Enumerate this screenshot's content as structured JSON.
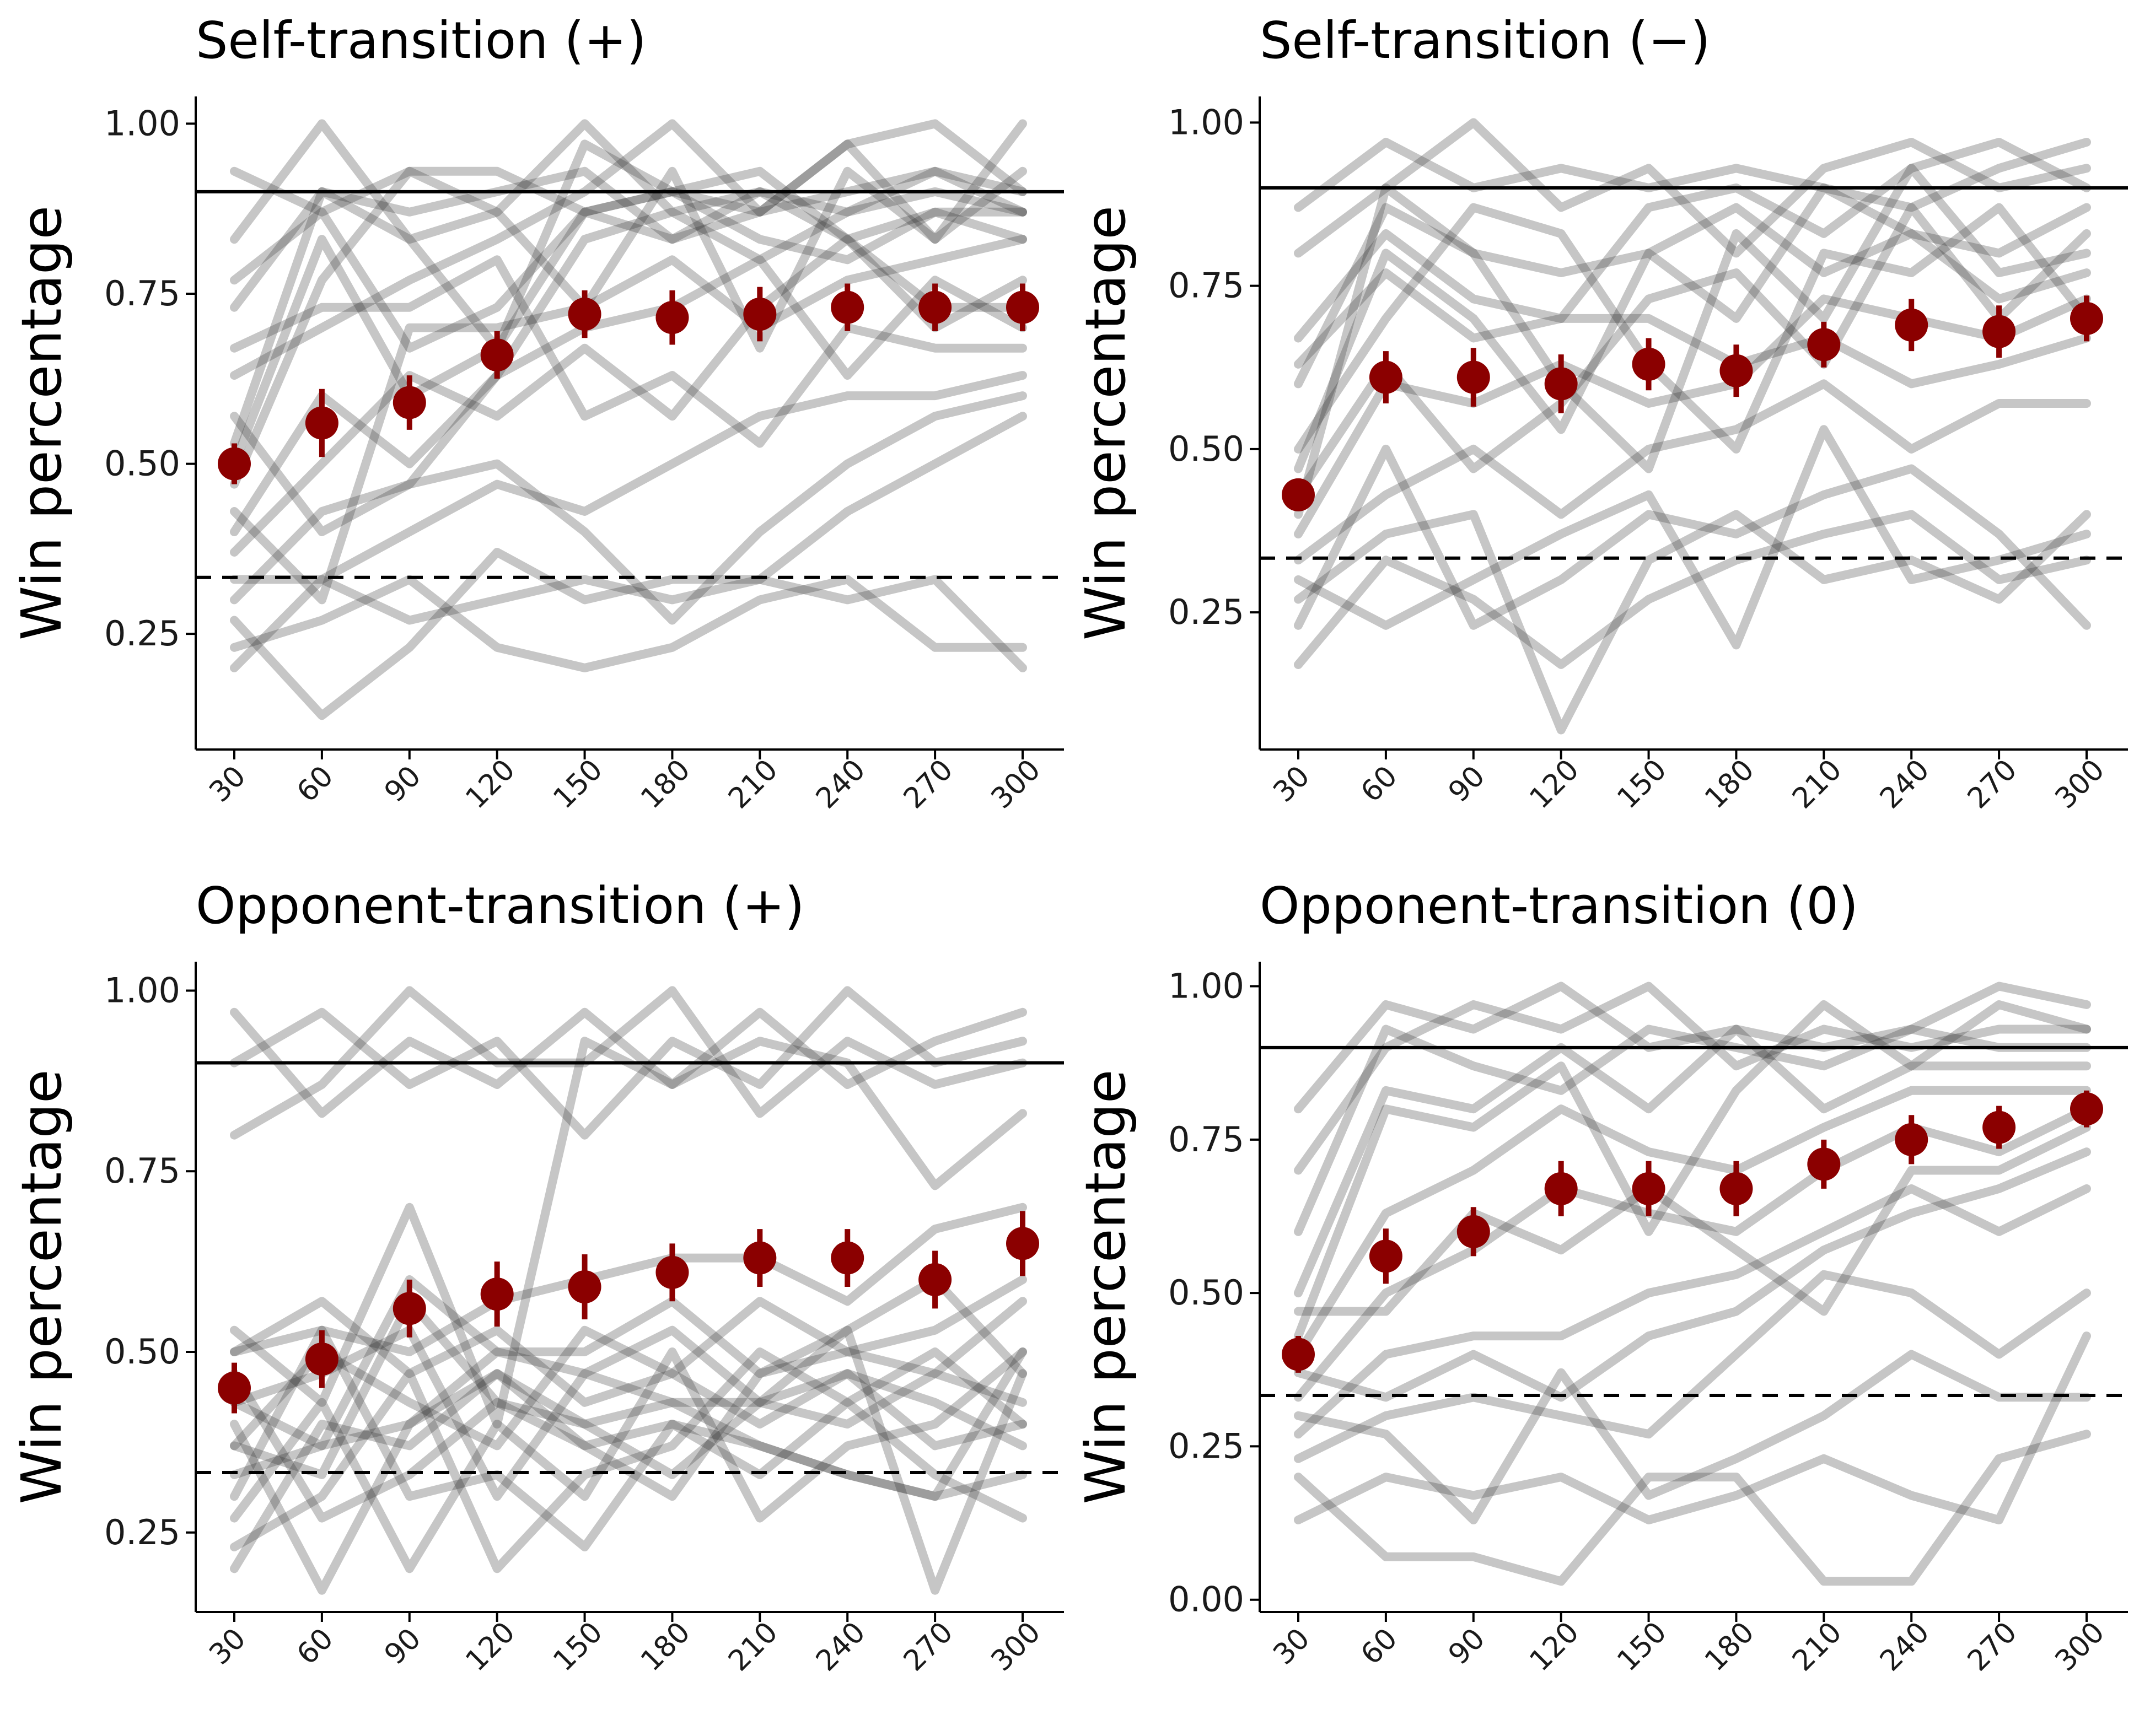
{
  "chart_data": [
    {
      "type": "line",
      "title": "Self-transition (+)",
      "ylabel": "Win percentage",
      "xlabel": "",
      "x": [
        30,
        60,
        90,
        120,
        150,
        180,
        210,
        240,
        270,
        300
      ],
      "ylim": [
        0.08,
        1.04
      ],
      "yticks": [
        0.25,
        0.5,
        0.75,
        1.0
      ],
      "ytick_labels": [
        "0.25",
        "0.50",
        "0.75",
        "1.00"
      ],
      "reference_lines": [
        {
          "y": 0.9,
          "style": "solid"
        },
        {
          "y": 0.333,
          "style": "dashed"
        }
      ],
      "mean": {
        "values": [
          0.5,
          0.56,
          0.59,
          0.66,
          0.72,
          0.715,
          0.72,
          0.73,
          0.73,
          0.73
        ],
        "errors": [
          0.03,
          0.05,
          0.04,
          0.035,
          0.035,
          0.04,
          0.04,
          0.035,
          0.035,
          0.035
        ]
      },
      "series": [
        {
          "values": [
            0.93,
            0.87,
            0.93,
            0.93,
            0.87,
            0.9,
            0.87,
            0.9,
            0.93,
            0.9
          ]
        },
        {
          "values": [
            0.83,
            1.0,
            0.83,
            0.87,
            1.0,
            0.87,
            0.9,
            0.83,
            0.87,
            0.87
          ]
        },
        {
          "values": [
            0.73,
            0.9,
            0.87,
            0.9,
            0.93,
            0.83,
            0.87,
            0.97,
            0.83,
            0.93
          ]
        },
        {
          "values": [
            0.63,
            0.7,
            0.77,
            0.83,
            0.9,
            1.0,
            0.87,
            0.97,
            1.0,
            0.9
          ]
        },
        {
          "values": [
            0.57,
            0.4,
            0.47,
            0.63,
            0.83,
            0.87,
            0.8,
            0.87,
            0.9,
            0.87
          ]
        },
        {
          "values": [
            0.5,
            0.83,
            0.6,
            0.67,
            0.87,
            0.9,
            0.83,
            0.8,
            0.87,
            0.83
          ]
        },
        {
          "values": [
            0.43,
            0.3,
            0.7,
            0.7,
            0.73,
            0.8,
            0.7,
            0.77,
            0.8,
            0.83
          ]
        },
        {
          "values": [
            0.4,
            0.6,
            0.5,
            0.63,
            0.7,
            0.73,
            0.8,
            0.63,
            0.77,
            0.7
          ]
        },
        {
          "values": [
            0.37,
            0.5,
            0.63,
            0.57,
            0.67,
            0.57,
            0.73,
            0.83,
            0.7,
            0.77
          ]
        },
        {
          "values": [
            0.33,
            0.33,
            0.4,
            0.47,
            0.43,
            0.5,
            0.57,
            0.6,
            0.6,
            0.63
          ]
        },
        {
          "values": [
            0.3,
            0.43,
            0.47,
            0.5,
            0.4,
            0.27,
            0.4,
            0.5,
            0.57,
            0.6
          ]
        },
        {
          "values": [
            0.27,
            0.13,
            0.23,
            0.37,
            0.3,
            0.33,
            0.33,
            0.43,
            0.5,
            0.57
          ]
        },
        {
          "values": [
            0.23,
            0.27,
            0.33,
            0.23,
            0.2,
            0.23,
            0.3,
            0.33,
            0.23,
            0.23
          ]
        },
        {
          "values": [
            0.2,
            0.33,
            0.27,
            0.3,
            0.33,
            0.3,
            0.33,
            0.3,
            0.33,
            0.2
          ]
        },
        {
          "values": [
            0.47,
            0.77,
            0.93,
            0.87,
            0.73,
            0.93,
            0.67,
            0.93,
            0.83,
            1.0
          ]
        },
        {
          "values": [
            0.53,
            0.9,
            0.83,
            0.67,
            0.97,
            0.9,
            0.93,
            0.83,
            0.73,
            0.73
          ]
        },
        {
          "values": [
            0.67,
            0.73,
            0.73,
            0.8,
            0.57,
            0.63,
            0.53,
            0.7,
            0.67,
            0.67
          ]
        },
        {
          "values": [
            0.77,
            0.87,
            0.67,
            0.73,
            0.87,
            0.83,
            0.9,
            0.87,
            0.93,
            0.87
          ]
        }
      ]
    },
    {
      "type": "line",
      "title": "Self-transition (−)",
      "ylabel": "Win percentage",
      "xlabel": "",
      "x": [
        30,
        60,
        90,
        120,
        150,
        180,
        210,
        240,
        270,
        300
      ],
      "ylim": [
        0.04,
        1.04
      ],
      "yticks": [
        0.25,
        0.5,
        0.75,
        1.0
      ],
      "ytick_labels": [
        "0.25",
        "0.50",
        "0.75",
        "1.00"
      ],
      "reference_lines": [
        {
          "y": 0.9,
          "style": "solid"
        },
        {
          "y": 0.333,
          "style": "dashed"
        }
      ],
      "mean": {
        "values": [
          0.43,
          0.61,
          0.61,
          0.6,
          0.63,
          0.62,
          0.66,
          0.69,
          0.68,
          0.7
        ],
        "errors": [
          0.025,
          0.04,
          0.045,
          0.045,
          0.04,
          0.04,
          0.035,
          0.04,
          0.04,
          0.035
        ]
      },
      "series": [
        {
          "values": [
            0.87,
            0.97,
            0.9,
            0.93,
            0.9,
            0.93,
            0.9,
            0.87,
            0.93,
            0.97
          ]
        },
        {
          "values": [
            0.8,
            0.9,
            1.0,
            0.87,
            0.93,
            0.8,
            0.93,
            0.97,
            0.9,
            0.93
          ]
        },
        {
          "values": [
            0.67,
            0.83,
            0.73,
            0.7,
            0.87,
            0.9,
            0.83,
            0.93,
            0.97,
            0.9
          ]
        },
        {
          "values": [
            0.6,
            0.87,
            0.8,
            0.77,
            0.8,
            0.7,
            0.9,
            0.83,
            0.8,
            0.87
          ]
        },
        {
          "values": [
            0.43,
            0.63,
            0.47,
            0.57,
            0.73,
            0.77,
            0.63,
            0.87,
            0.7,
            0.83
          ]
        },
        {
          "values": [
            0.37,
            0.6,
            0.57,
            0.63,
            0.57,
            0.6,
            0.73,
            0.7,
            0.67,
            0.73
          ]
        },
        {
          "values": [
            0.33,
            0.43,
            0.5,
            0.4,
            0.5,
            0.53,
            0.6,
            0.5,
            0.57,
            0.57
          ]
        },
        {
          "values": [
            0.3,
            0.23,
            0.3,
            0.37,
            0.43,
            0.2,
            0.53,
            0.3,
            0.33,
            0.37
          ]
        },
        {
          "values": [
            0.27,
            0.37,
            0.4,
            0.07,
            0.33,
            0.4,
            0.3,
            0.33,
            0.27,
            0.4
          ]
        },
        {
          "values": [
            0.23,
            0.5,
            0.23,
            0.3,
            0.4,
            0.37,
            0.43,
            0.47,
            0.37,
            0.23
          ]
        },
        {
          "values": [
            0.17,
            0.33,
            0.27,
            0.17,
            0.27,
            0.33,
            0.37,
            0.4,
            0.3,
            0.33
          ]
        },
        {
          "values": [
            0.4,
            0.9,
            0.8,
            0.6,
            0.47,
            0.83,
            0.7,
            0.93,
            0.77,
            0.8
          ]
        },
        {
          "values": [
            0.5,
            0.7,
            0.87,
            0.83,
            0.63,
            0.5,
            0.8,
            0.77,
            0.87,
            0.7
          ]
        },
        {
          "values": [
            0.63,
            0.77,
            0.67,
            0.7,
            0.7,
            0.63,
            0.67,
            0.6,
            0.63,
            0.67
          ]
        },
        {
          "values": [
            0.47,
            0.8,
            0.7,
            0.53,
            0.8,
            0.87,
            0.77,
            0.83,
            0.73,
            0.77
          ]
        }
      ]
    },
    {
      "type": "line",
      "title": "Opponent-transition (+)",
      "ylabel": "Win percentage",
      "xlabel": "",
      "x": [
        30,
        60,
        90,
        120,
        150,
        180,
        210,
        240,
        270,
        300
      ],
      "ylim": [
        0.14,
        1.04
      ],
      "yticks": [
        0.25,
        0.5,
        0.75,
        1.0
      ],
      "ytick_labels": [
        "0.25",
        "0.50",
        "0.75",
        "1.00"
      ],
      "reference_lines": [
        {
          "y": 0.9,
          "style": "solid"
        },
        {
          "y": 0.333,
          "style": "dashed"
        }
      ],
      "mean": {
        "values": [
          0.45,
          0.49,
          0.56,
          0.58,
          0.59,
          0.61,
          0.63,
          0.63,
          0.6,
          0.65
        ],
        "errors": [
          0.035,
          0.04,
          0.04,
          0.045,
          0.045,
          0.04,
          0.04,
          0.04,
          0.04,
          0.045
        ]
      },
      "series": [
        {
          "values": [
            0.97,
            0.83,
            0.93,
            0.87,
            0.97,
            0.87,
            0.97,
            0.87,
            0.93,
            0.97
          ]
        },
        {
          "values": [
            0.9,
            0.97,
            0.87,
            0.93,
            0.8,
            0.93,
            0.87,
            1.0,
            0.9,
            0.93
          ]
        },
        {
          "values": [
            0.8,
            0.87,
            1.0,
            0.9,
            0.9,
            1.0,
            0.83,
            0.93,
            0.87,
            0.9
          ]
        },
        {
          "values": [
            0.53,
            0.43,
            0.7,
            0.4,
            0.93,
            0.87,
            0.93,
            0.9,
            0.73,
            0.83
          ]
        },
        {
          "values": [
            0.5,
            0.57,
            0.47,
            0.53,
            0.43,
            0.47,
            0.57,
            0.5,
            0.47,
            0.57
          ]
        },
        {
          "values": [
            0.47,
            0.27,
            0.33,
            0.43,
            0.4,
            0.43,
            0.43,
            0.4,
            0.47,
            0.43
          ]
        },
        {
          "values": [
            0.43,
            0.47,
            0.53,
            0.3,
            0.47,
            0.53,
            0.43,
            0.47,
            0.37,
            0.4
          ]
        },
        {
          "values": [
            0.4,
            0.17,
            0.4,
            0.47,
            0.37,
            0.3,
            0.47,
            0.53,
            0.17,
            0.47
          ]
        },
        {
          "values": [
            0.37,
            0.5,
            0.43,
            0.37,
            0.53,
            0.47,
            0.4,
            0.47,
            0.43,
            0.37
          ]
        },
        {
          "values": [
            0.33,
            0.37,
            0.4,
            0.5,
            0.47,
            0.43,
            0.37,
            0.33,
            0.3,
            0.33
          ]
        },
        {
          "values": [
            0.3,
            0.53,
            0.3,
            0.33,
            0.23,
            0.4,
            0.33,
            0.43,
            0.33,
            0.27
          ]
        },
        {
          "values": [
            0.27,
            0.43,
            0.2,
            0.4,
            0.3,
            0.5,
            0.27,
            0.37,
            0.4,
            0.5
          ]
        },
        {
          "values": [
            0.23,
            0.3,
            0.47,
            0.2,
            0.33,
            0.37,
            0.5,
            0.43,
            0.5,
            0.4
          ]
        },
        {
          "values": [
            0.2,
            0.4,
            0.37,
            0.47,
            0.4,
            0.33,
            0.43,
            0.53,
            0.6,
            0.47
          ]
        },
        {
          "values": [
            0.5,
            0.53,
            0.5,
            0.57,
            0.6,
            0.63,
            0.63,
            0.57,
            0.67,
            0.7
          ]
        },
        {
          "values": [
            0.43,
            0.37,
            0.6,
            0.5,
            0.5,
            0.57,
            0.47,
            0.5,
            0.53,
            0.6
          ]
        },
        {
          "values": [
            0.37,
            0.33,
            0.57,
            0.43,
            0.37,
            0.4,
            0.37,
            0.33,
            0.3,
            0.5
          ]
        }
      ]
    },
    {
      "type": "line",
      "title": "Opponent-transition (0)",
      "ylabel": "Win percentage",
      "xlabel": "",
      "x": [
        30,
        60,
        90,
        120,
        150,
        180,
        210,
        240,
        270,
        300
      ],
      "ylim": [
        -0.02,
        1.04
      ],
      "yticks": [
        0.0,
        0.25,
        0.5,
        0.75,
        1.0
      ],
      "ytick_labels": [
        "0.00",
        "0.25",
        "0.50",
        "0.75",
        "1.00"
      ],
      "reference_lines": [
        {
          "y": 0.9,
          "style": "solid"
        },
        {
          "y": 0.333,
          "style": "dashed"
        }
      ],
      "mean": {
        "values": [
          0.4,
          0.56,
          0.6,
          0.67,
          0.67,
          0.67,
          0.71,
          0.75,
          0.77,
          0.8
        ],
        "errors": [
          0.03,
          0.045,
          0.04,
          0.045,
          0.045,
          0.045,
          0.04,
          0.04,
          0.035,
          0.03
        ]
      },
      "series": [
        {
          "values": [
            0.8,
            0.97,
            0.93,
            1.0,
            0.9,
            0.93,
            0.9,
            0.93,
            1.0,
            0.97
          ]
        },
        {
          "values": [
            0.7,
            0.9,
            0.97,
            0.93,
            1.0,
            0.87,
            0.93,
            0.9,
            0.93,
            0.93
          ]
        },
        {
          "values": [
            0.6,
            0.93,
            0.87,
            0.83,
            0.93,
            0.9,
            0.87,
            0.93,
            0.9,
            0.9
          ]
        },
        {
          "values": [
            0.5,
            0.83,
            0.8,
            0.9,
            0.8,
            0.93,
            0.8,
            0.87,
            0.87,
            0.87
          ]
        },
        {
          "values": [
            0.4,
            0.63,
            0.7,
            0.8,
            0.73,
            0.7,
            0.77,
            0.83,
            0.83,
            0.83
          ]
        },
        {
          "values": [
            0.33,
            0.5,
            0.57,
            0.67,
            0.63,
            0.6,
            0.7,
            0.77,
            0.73,
            0.8
          ]
        },
        {
          "values": [
            0.27,
            0.4,
            0.43,
            0.43,
            0.5,
            0.53,
            0.6,
            0.67,
            0.6,
            0.67
          ]
        },
        {
          "values": [
            0.23,
            0.3,
            0.33,
            0.3,
            0.27,
            0.4,
            0.53,
            0.5,
            0.4,
            0.5
          ]
        },
        {
          "values": [
            0.2,
            0.07,
            0.07,
            0.03,
            0.2,
            0.2,
            0.03,
            0.03,
            0.23,
            0.27
          ]
        },
        {
          "values": [
            0.13,
            0.2,
            0.17,
            0.2,
            0.13,
            0.17,
            0.23,
            0.17,
            0.13,
            0.43
          ]
        },
        {
          "values": [
            0.3,
            0.27,
            0.13,
            0.37,
            0.17,
            0.23,
            0.3,
            0.4,
            0.33,
            0.33
          ]
        },
        {
          "values": [
            0.37,
            0.33,
            0.4,
            0.33,
            0.43,
            0.47,
            0.57,
            0.63,
            0.67,
            0.73
          ]
        },
        {
          "values": [
            0.43,
            0.8,
            0.77,
            0.87,
            0.6,
            0.83,
            0.97,
            0.87,
            0.97,
            0.93
          ]
        },
        {
          "values": [
            0.47,
            0.47,
            0.63,
            0.57,
            0.67,
            0.57,
            0.47,
            0.7,
            0.7,
            0.77
          ]
        }
      ]
    }
  ]
}
